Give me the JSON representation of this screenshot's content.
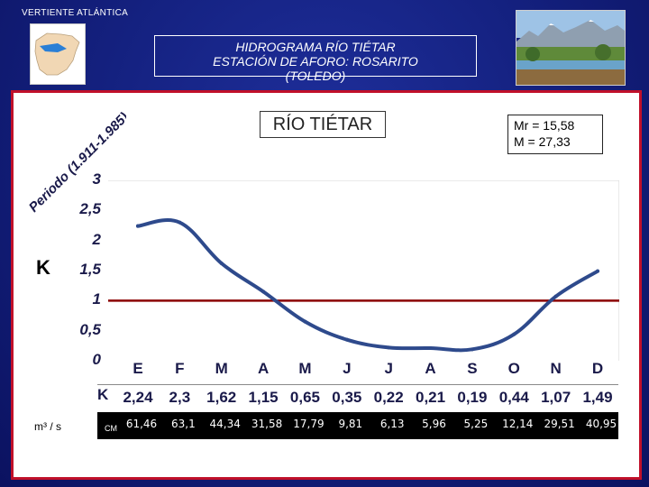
{
  "header": {
    "region_label": "VERTIENTE  ATLÁNTICA",
    "title_line1": "HIDROGRAMA  RÍO  TIÉTAR",
    "title_line2": "ESTACIÓN DE AFORO: ROSARITO",
    "title_line3": "(TOLEDO)"
  },
  "chart_title": "RÍO TIÉTAR",
  "period_label": "Periodo (1.911-1.985)",
  "stats": {
    "mr": "Mr = 15,58",
    "m": "M = 27,33"
  },
  "k_axis_label": "K",
  "k_row_label": "K",
  "flow_unit_label": "m³ / s",
  "cm_label": "CM",
  "colors": {
    "background": "#152282",
    "frame": "#c0102a",
    "line": "#2e4a8c",
    "reference_line": "#8b0000",
    "text_dark": "#1a1a4a"
  },
  "chart_data": {
    "type": "line",
    "title": "RÍO TIÉTAR",
    "ylabel": "K",
    "xlabel": "",
    "ylim": [
      0,
      3
    ],
    "yticks": [
      "0",
      "0,5",
      "1",
      "1,5",
      "2",
      "2,5",
      "3"
    ],
    "ytick_values": [
      0,
      0.5,
      1,
      1.5,
      2,
      2.5,
      3
    ],
    "categories": [
      "E",
      "F",
      "M",
      "A",
      "M",
      "J",
      "J",
      "A",
      "S",
      "O",
      "N",
      "D"
    ],
    "series": [
      {
        "values": [
          2.24,
          2.3,
          1.62,
          1.15,
          0.65,
          0.35,
          0.22,
          0.21,
          0.19,
          0.44,
          1.07,
          1.49
        ]
      }
    ],
    "k_labels": [
      "2,24",
      "2,3",
      "1,62",
      "1,15",
      "0,65",
      "0,35",
      "0,22",
      "0,21",
      "0,19",
      "0,44",
      "1,07",
      "1,49"
    ],
    "monthly_flow": [
      "61,46",
      "63,1",
      "44,34",
      "31,58",
      "17,79",
      "9,81",
      "6,13",
      "5,96",
      "5,25",
      "12,14",
      "29,51",
      "40,95"
    ],
    "reference_line_value": 1,
    "grid": false
  }
}
